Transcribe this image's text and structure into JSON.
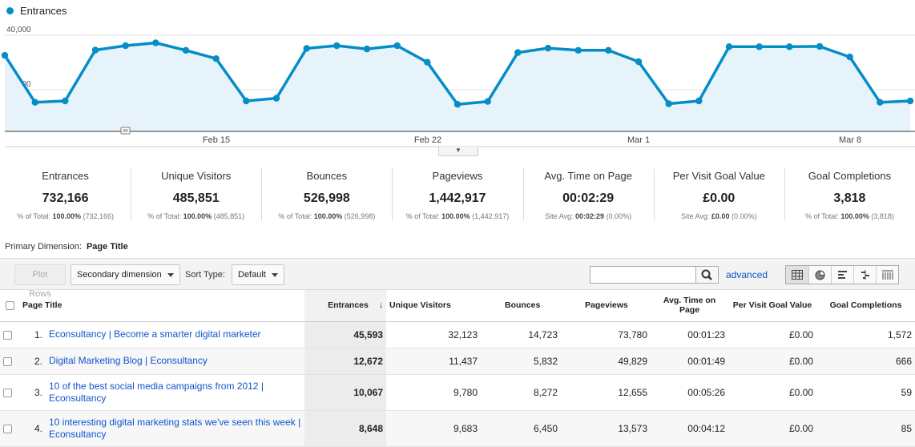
{
  "chart": {
    "legend": "Entrances",
    "y_ticks": [
      "40,000",
      "20,000"
    ],
    "x_ticks": [
      "Feb 15",
      "Feb 22",
      "Mar 1",
      "Mar 8"
    ],
    "series_color": "#058dc7"
  },
  "chart_data": {
    "type": "area",
    "series": [
      {
        "name": "Entrances",
        "values": [
          27500,
          10500,
          11000,
          29400,
          31000,
          32000,
          29300,
          26300,
          11000,
          12000,
          30000,
          31000,
          29800,
          31000,
          25000,
          9800,
          10800,
          28500,
          30100,
          29300,
          29300,
          25200,
          10000,
          11000,
          30600,
          30600,
          30600,
          30700,
          26900,
          10500,
          11000
        ]
      }
    ],
    "ylim": [
      0,
      47500
    ],
    "y_ticks": [
      20000,
      40000
    ],
    "x_ticks": [
      "Feb 15",
      "Feb 22",
      "Mar 1",
      "Mar 8"
    ]
  },
  "scorecards": [
    {
      "label": "Entrances",
      "value": "732,166",
      "sub_prefix": "% of Total:",
      "sub_bold": "100.00%",
      "sub_suffix": "(732,166)"
    },
    {
      "label": "Unique Visitors",
      "value": "485,851",
      "sub_prefix": "% of Total:",
      "sub_bold": "100.00%",
      "sub_suffix": "(485,851)"
    },
    {
      "label": "Bounces",
      "value": "526,998",
      "sub_prefix": "% of Total:",
      "sub_bold": "100.00%",
      "sub_suffix": "(526,998)"
    },
    {
      "label": "Pageviews",
      "value": "1,442,917",
      "sub_prefix": "% of Total:",
      "sub_bold": "100.00%",
      "sub_suffix": "(1,442,917)"
    },
    {
      "label": "Avg. Time on Page",
      "value": "00:02:29",
      "sub_prefix": "Site Avg:",
      "sub_bold": "00:02:29",
      "sub_suffix": "(0.00%)"
    },
    {
      "label": "Per Visit Goal Value",
      "value": "£0.00",
      "sub_prefix": "Site Avg:",
      "sub_bold": "£0.00",
      "sub_suffix": "(0.00%)"
    },
    {
      "label": "Goal Completions",
      "value": "3,818",
      "sub_prefix": "% of Total:",
      "sub_bold": "100.00%",
      "sub_suffix": "(3,818)"
    }
  ],
  "primary_dimension": {
    "label": "Primary Dimension:",
    "value": "Page Title"
  },
  "toolbar": {
    "plot_rows": "Plot Rows",
    "secondary_dimension": "Secondary dimension",
    "sort_type_label": "Sort Type:",
    "sort_type_value": "Default",
    "search_value": "",
    "advanced": "advanced"
  },
  "table": {
    "headers": {
      "page_title": "Page Title",
      "entrances": "Entrances",
      "unique_visitors": "Unique Visitors",
      "bounces": "Bounces",
      "pageviews": "Pageviews",
      "avg_time": "Avg. Time on Page",
      "goal_value": "Per Visit Goal Value",
      "goal_completions": "Goal Completions"
    },
    "rows": [
      {
        "num": "1.",
        "title": "Econsultancy | Become a smarter digital marketer",
        "entrances": "45,593",
        "unique": "32,123",
        "bounces": "14,723",
        "pageviews": "73,780",
        "time": "00:01:23",
        "goal_value": "£0.00",
        "goal_completions": "1,572"
      },
      {
        "num": "2.",
        "title": "Digital Marketing Blog | Econsultancy",
        "entrances": "12,672",
        "unique": "11,437",
        "bounces": "5,832",
        "pageviews": "49,829",
        "time": "00:01:49",
        "goal_value": "£0.00",
        "goal_completions": "666"
      },
      {
        "num": "3.",
        "title": "10 of the best social media campaigns from 2012 | Econsultancy",
        "entrances": "10,067",
        "unique": "9,780",
        "bounces": "8,272",
        "pageviews": "12,655",
        "time": "00:05:26",
        "goal_value": "£0.00",
        "goal_completions": "59"
      },
      {
        "num": "4.",
        "title": "10 interesting digital marketing stats we've seen this week | Econsultancy",
        "entrances": "8,648",
        "unique": "9,683",
        "bounces": "6,450",
        "pageviews": "13,573",
        "time": "00:04:12",
        "goal_value": "£0.00",
        "goal_completions": "85"
      }
    ]
  }
}
